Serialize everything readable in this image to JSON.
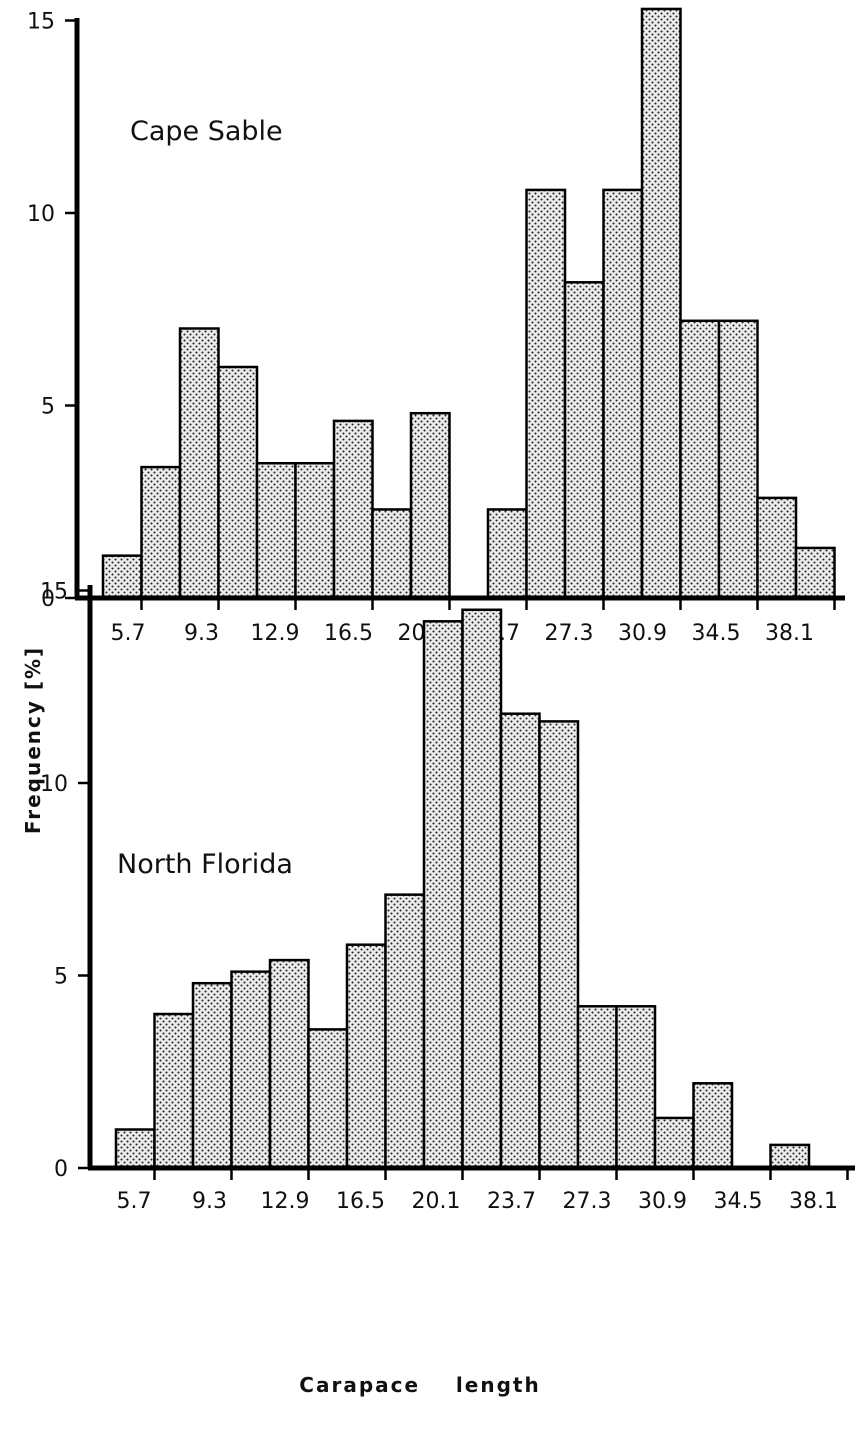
{
  "chart_data": [
    {
      "type": "bar",
      "panel_label": "Cape Sable",
      "bin_labels": [
        "5.7",
        "9.3",
        "12.9",
        "16.5",
        "20.1",
        "23.7",
        "27.3",
        "30.9",
        "34.5",
        "38.1"
      ],
      "values": [
        1.1,
        3.4,
        7.0,
        6.0,
        3.5,
        3.5,
        4.6,
        2.3,
        4.8,
        null,
        2.3,
        10.6,
        8.2,
        10.6,
        15.3,
        7.2,
        7.2,
        2.6,
        1.3
      ],
      "y_ticks": [
        "0",
        "5",
        "10",
        "15"
      ],
      "ylim": [
        0,
        15.5
      ],
      "grid": false
    },
    {
      "type": "bar",
      "panel_label": "North Florida",
      "bin_labels": [
        "5.7",
        "9.3",
        "12.9",
        "16.5",
        "20.1",
        "23.7",
        "27.3",
        "30.9",
        "34.5",
        "38.1"
      ],
      "values": [
        1.0,
        4.0,
        4.8,
        5.1,
        5.4,
        3.6,
        5.8,
        7.1,
        14.2,
        14.5,
        11.8,
        11.6,
        4.2,
        4.2,
        1.3,
        2.2,
        null,
        0.6
      ],
      "y_ticks": [
        "0",
        "5",
        "10",
        "15"
      ],
      "ylim": [
        0,
        15.5
      ],
      "grid": false
    }
  ],
  "ylabel": "Frequency  [%]",
  "xlabel": "Carapace    length",
  "colors": {
    "bar_fill": "#ececec",
    "dot": "#222222",
    "axis": "#000000"
  }
}
